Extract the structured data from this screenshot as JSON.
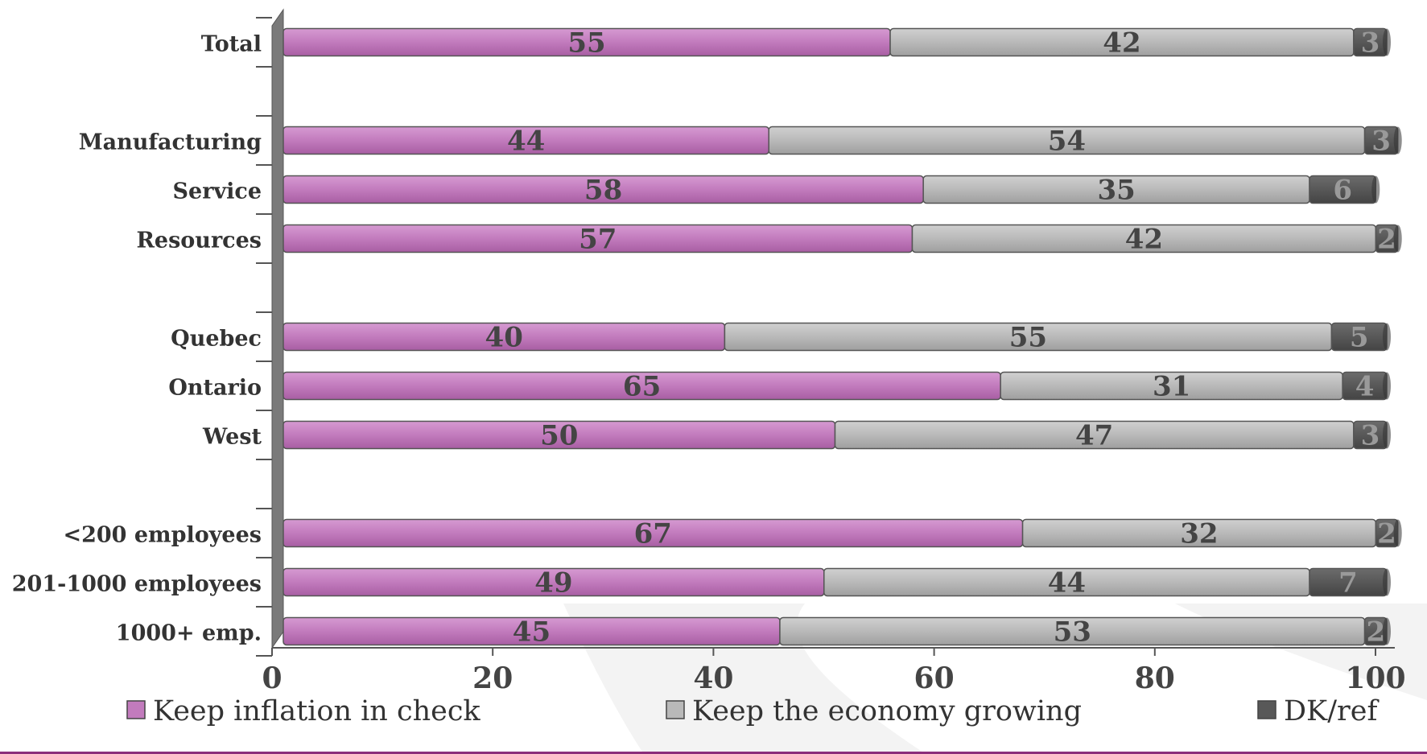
{
  "chart_data": {
    "type": "bar",
    "orientation": "horizontal",
    "stacked": true,
    "categories": [
      "Total",
      "",
      "Manufacturing",
      "Service",
      "Resources",
      "",
      "Quebec",
      "Ontario",
      "West",
      "",
      "<200 employees",
      "201-1000 employees",
      "1000+ emp."
    ],
    "series": [
      {
        "name": "Keep inflation in check",
        "color": "#c27bbd",
        "values": [
          55,
          null,
          44,
          58,
          57,
          null,
          40,
          65,
          50,
          null,
          67,
          49,
          45
        ]
      },
      {
        "name": "Keep the economy growing",
        "color": "#b9b9b9",
        "values": [
          42,
          null,
          54,
          35,
          42,
          null,
          55,
          31,
          47,
          null,
          32,
          44,
          53
        ]
      },
      {
        "name": "DK/ref",
        "color": "#585858",
        "values": [
          3,
          null,
          3,
          6,
          2,
          null,
          5,
          4,
          3,
          null,
          2,
          7,
          2
        ]
      }
    ],
    "xlim": [
      0,
      100
    ],
    "xticks": [
      0,
      20,
      40,
      60,
      80,
      100
    ],
    "legend": "bottom",
    "grid": false
  }
}
